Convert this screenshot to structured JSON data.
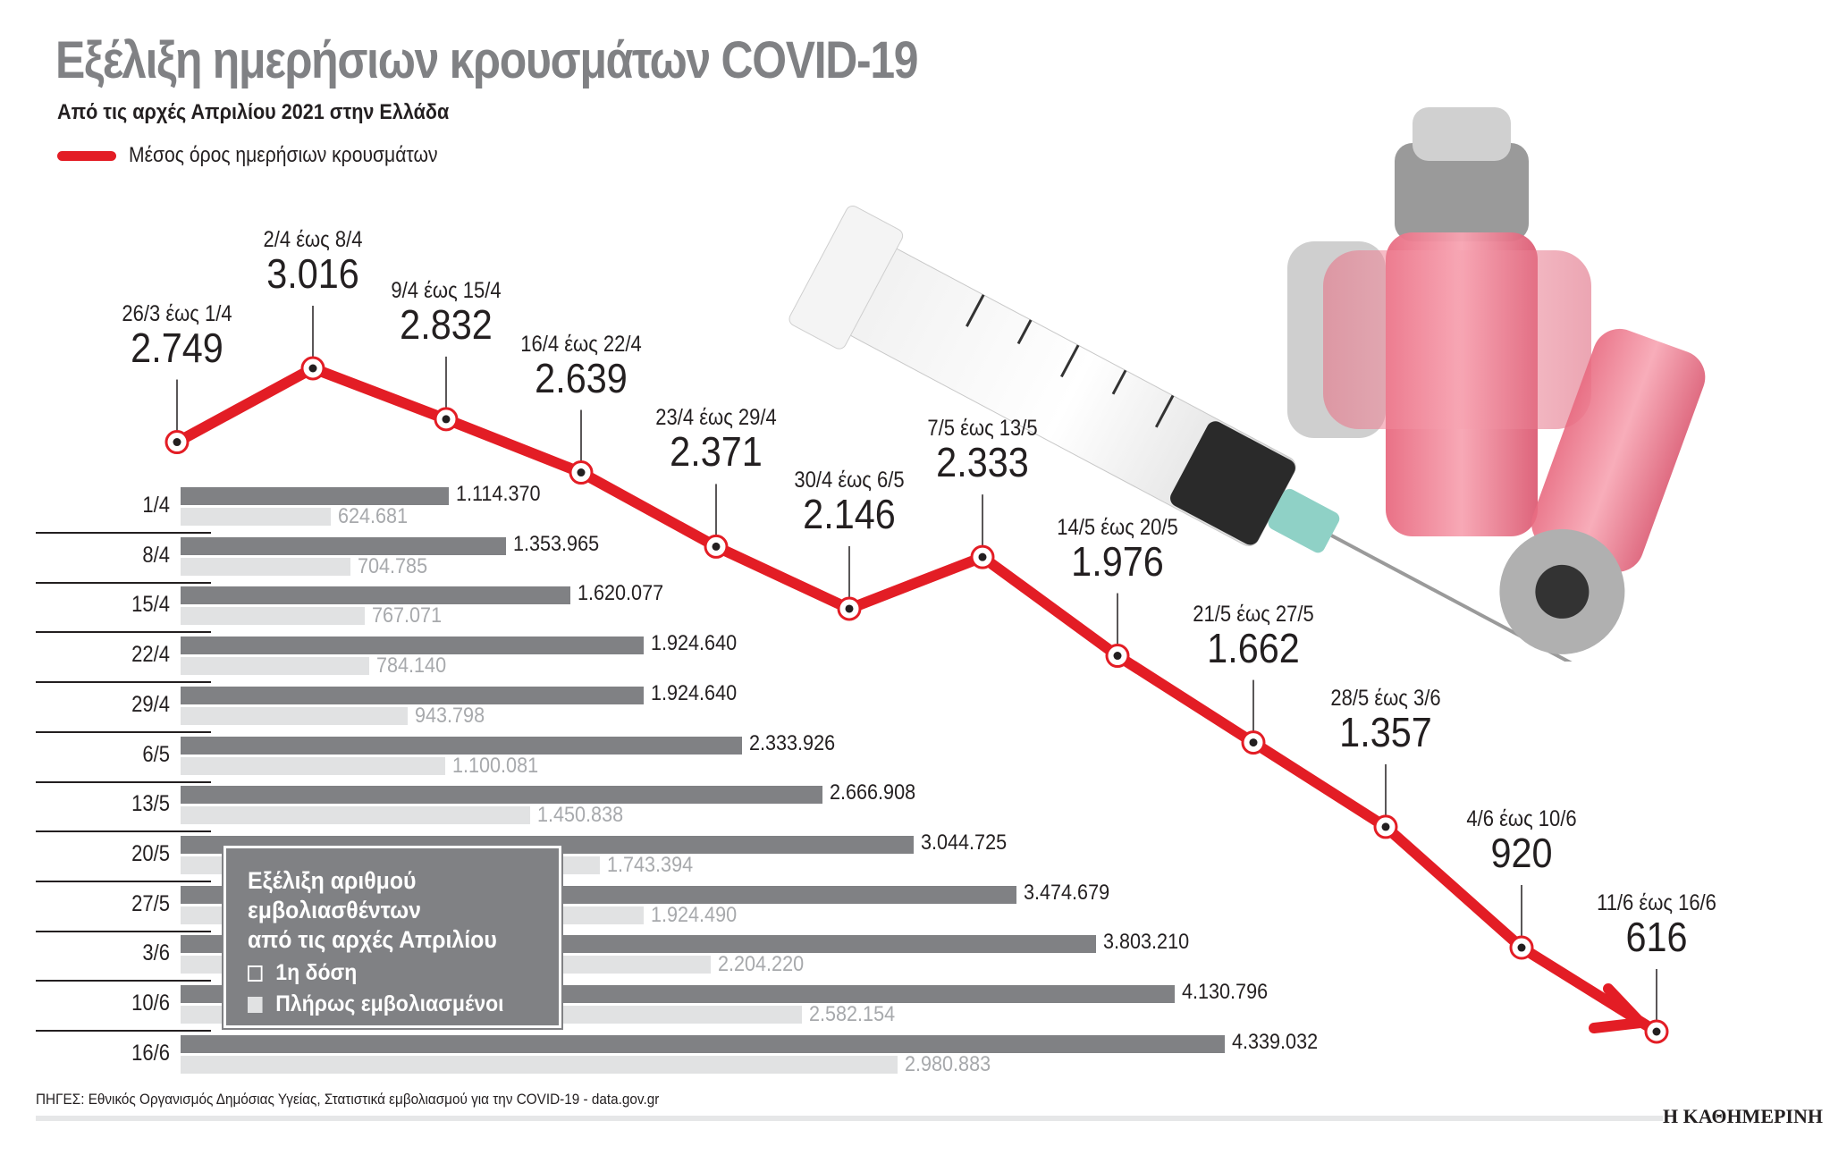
{
  "header": {
    "title": "Εξέλιξη ημερήσιων κρουσμάτων COVID-19",
    "subtitle": "Από τις αρχές Απριλίου 2021 στην Ελλάδα",
    "legend_label": "Μέσος όρος ημερήσιων κρουσμάτων"
  },
  "colors": {
    "line": "#e31d25",
    "bar_first_dose": "#808184",
    "bar_fully_vaccinated": "#e1e2e3",
    "title": "#808184"
  },
  "line_points": [
    {
      "range": "26/3 έως 1/4",
      "value": "2.749"
    },
    {
      "range": "2/4 έως 8/4",
      "value": "3.016"
    },
    {
      "range": "9/4 έως 15/4",
      "value": "2.832"
    },
    {
      "range": "16/4 έως 22/4",
      "value": "2.639"
    },
    {
      "range": "23/4 έως 29/4",
      "value": "2.371"
    },
    {
      "range": "30/4 έως 6/5",
      "value": "2.146"
    },
    {
      "range": "7/5 έως 13/5",
      "value": "2.333"
    },
    {
      "range": "14/5 έως 20/5",
      "value": "1.976"
    },
    {
      "range": "21/5 έως 27/5",
      "value": "1.662"
    },
    {
      "range": "28/5 έως 3/6",
      "value": "1.357"
    },
    {
      "range": "4/6 έως 10/6",
      "value": "920"
    },
    {
      "range": "11/6 έως 16/6",
      "value": "616"
    }
  ],
  "bars": [
    {
      "date": "1/4",
      "first_dose": "1.114.370",
      "fully": "624.681"
    },
    {
      "date": "8/4",
      "first_dose": "1.353.965",
      "fully": "704.785"
    },
    {
      "date": "15/4",
      "first_dose": "1.620.077",
      "fully": "767.071"
    },
    {
      "date": "22/4",
      "first_dose": "1.924.640",
      "fully": "784.140"
    },
    {
      "date": "29/4",
      "first_dose": "1.924.640",
      "fully": "943.798"
    },
    {
      "date": "6/5",
      "first_dose": "2.333.926",
      "fully": "1.100.081"
    },
    {
      "date": "13/5",
      "first_dose": "2.666.908",
      "fully": "1.450.838"
    },
    {
      "date": "20/5",
      "first_dose": "3.044.725",
      "fully": "1.743.394"
    },
    {
      "date": "27/5",
      "first_dose": "3.474.679",
      "fully": "1.924.490"
    },
    {
      "date": "3/6",
      "first_dose": "3.803.210",
      "fully": "2.204.220"
    },
    {
      "date": "10/6",
      "first_dose": "4.130.796",
      "fully": "2.582.154"
    },
    {
      "date": "16/6",
      "first_dose": "4.339.032",
      "fully": "2.980.883"
    }
  ],
  "vaccination_box": {
    "title_line1": "Εξέλιξη αριθμού",
    "title_line2": "εμβολιασθέντων",
    "title_line3": "από τις αρχές Απριλίου",
    "legend_first_dose": "1η δόση",
    "legend_fully": "Πλήρως εμβολιασμένοι"
  },
  "footer": {
    "source": "ΠΗΓΕΣ: Εθνικός Οργανισμός Δημόσιας Υγείας, Στατιστικά εμβολιασμού για την COVID-19 - data.gov.gr",
    "brand": "Η ΚΑΘΗΜΕΡΙΝΗ"
  },
  "chart_data": [
    {
      "type": "line",
      "title": "Εξέλιξη ημερήσιων κρουσμάτων COVID-19",
      "subtitle": "Από τις αρχές Απριλίου 2021 στην Ελλάδα",
      "legend": [
        "Μέσος όρος ημερήσιων κρουσμάτων"
      ],
      "categories": [
        "26/3 έως 1/4",
        "2/4 έως 8/4",
        "9/4 έως 15/4",
        "16/4 έως 22/4",
        "23/4 έως 29/4",
        "30/4 έως 6/5",
        "7/5 έως 13/5",
        "14/5 έως 20/5",
        "21/5 έως 27/5",
        "28/5 έως 3/6",
        "4/6 έως 10/6",
        "11/6 έως 16/6"
      ],
      "series": [
        {
          "name": "Μέσος όρος ημερήσιων κρουσμάτων",
          "values": [
            2749,
            3016,
            2832,
            2639,
            2371,
            2146,
            2333,
            1976,
            1662,
            1357,
            920,
            616
          ]
        }
      ],
      "xlabel": "",
      "ylabel": "",
      "grid": false
    },
    {
      "type": "bar",
      "orientation": "horizontal",
      "title": "Εξέλιξη αριθμού εμβολιασθέντων από τις αρχές Απριλίου",
      "legend": [
        "1η δόση",
        "Πλήρως εμβολιασμένοι"
      ],
      "categories": [
        "1/4",
        "8/4",
        "15/4",
        "22/4",
        "29/4",
        "6/5",
        "13/5",
        "20/5",
        "27/5",
        "3/6",
        "10/6",
        "16/6"
      ],
      "series": [
        {
          "name": "1η δόση",
          "values": [
            1114370,
            1353965,
            1620077,
            1924640,
            1924640,
            2333926,
            2666908,
            3044725,
            3474679,
            3803210,
            4130796,
            4339032
          ]
        },
        {
          "name": "Πλήρως εμβολιασμένοι",
          "values": [
            624681,
            704785,
            767071,
            784140,
            943798,
            1100081,
            1450838,
            1743394,
            1924490,
            2204220,
            2582154,
            2980883
          ]
        }
      ],
      "xlim": [
        0,
        4339032
      ],
      "grid": false
    }
  ]
}
